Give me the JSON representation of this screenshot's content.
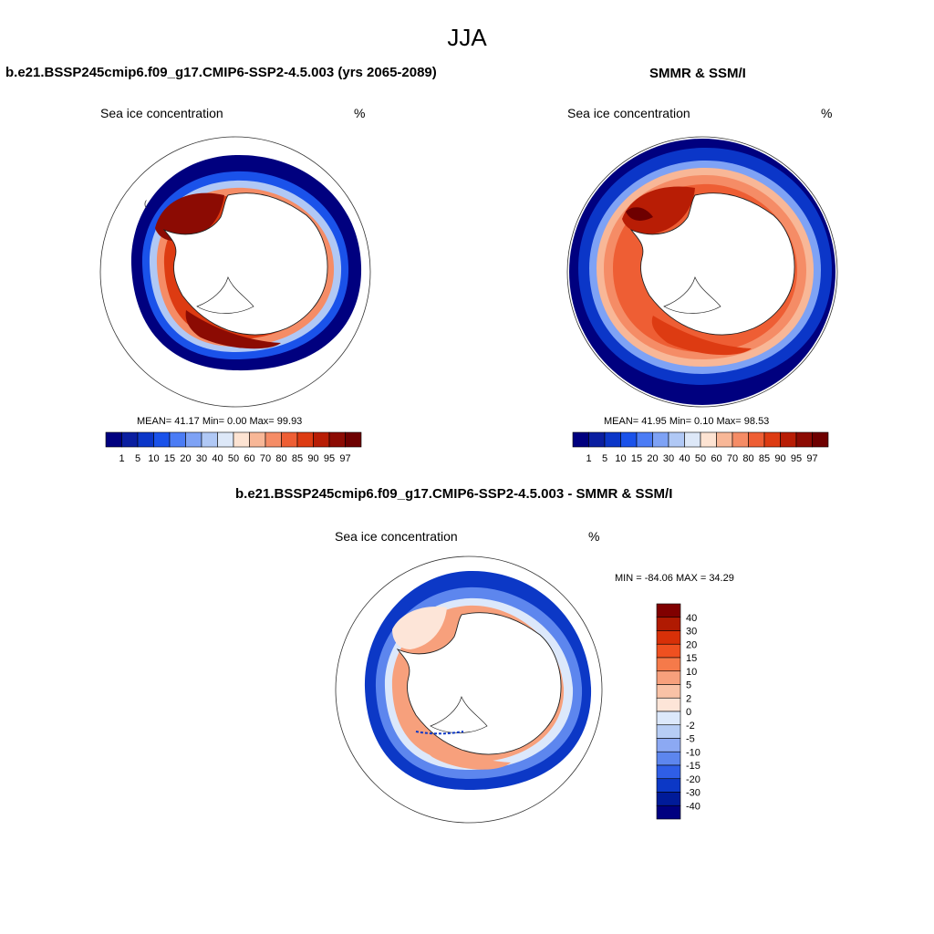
{
  "figure": {
    "title": "JJA"
  },
  "panels": [
    {
      "id": "model",
      "title": "b.e21.BSSP245cmip6.f09_g17.CMIP6-SSP2-4.5.003 (yrs 2065-2089)",
      "variable": "Sea ice concentration",
      "units": "%",
      "stats": "MEAN=  41.17  Min=   0.00  Max=  99.93"
    },
    {
      "id": "obs",
      "title": "SMMR & SSM/I",
      "variable": "Sea ice concentration",
      "units": "%",
      "stats": "MEAN=  41.95  Min=   0.10  Max=  98.53"
    },
    {
      "id": "diff",
      "title": "b.e21.BSSP245cmip6.f09_g17.CMIP6-SSP2-4.5.003 - SMMR & SSM/I",
      "variable": "Sea ice concentration",
      "units": "%",
      "stats": "MIN = -84.06 MAX =  34.29"
    }
  ],
  "concentration_scale": {
    "labels": [
      "1",
      "5",
      "10",
      "15",
      "20",
      "30",
      "40",
      "50",
      "60",
      "70",
      "80",
      "85",
      "90",
      "95",
      "97"
    ],
    "colors": [
      "#00007f",
      "#0a1ea0",
      "#0b36c8",
      "#1a52ea",
      "#4b7cf5",
      "#7ea2f5",
      "#b0c8f5",
      "#dde8f8",
      "#fde3d2",
      "#f8b797",
      "#f58c66",
      "#ee5e34",
      "#dd3b12",
      "#b81d05",
      "#8c0b03",
      "#6e0000"
    ]
  },
  "difference_scale": {
    "labels": [
      "40",
      "30",
      "20",
      "15",
      "10",
      "5",
      "2",
      "0",
      "-2",
      "-5",
      "-10",
      "-15",
      "-20",
      "-30",
      "-40"
    ],
    "colors": [
      "#800000",
      "#b01a02",
      "#d83008",
      "#ef5020",
      "#f57a4a",
      "#f7a07c",
      "#f9c2a6",
      "#fde5d8",
      "#dce8fb",
      "#b7cdf5",
      "#8ca9f3",
      "#5d86ee",
      "#2f5ee6",
      "#0c38c6",
      "#001b99",
      "#000080"
    ]
  }
}
